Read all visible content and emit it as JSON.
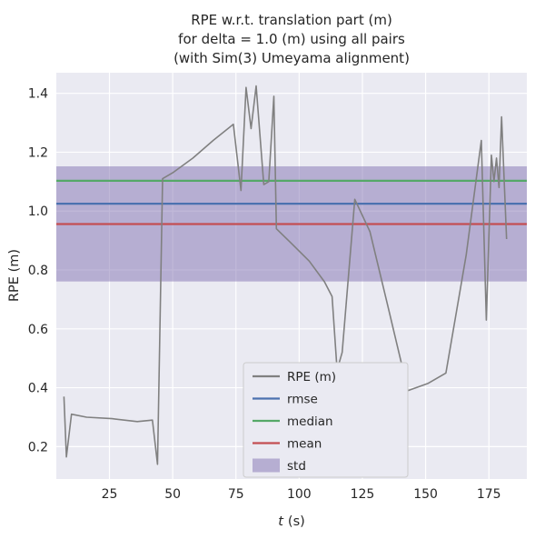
{
  "figure": {
    "background": "#ffffff"
  },
  "chart_data": {
    "type": "line",
    "title_lines": [
      "RPE w.r.t. translation part (m)",
      "for delta = 1.0 (m) using all pairs",
      "(with Sim(3) Umeyama alignment)"
    ],
    "xlabel_var": "t",
    "xlabel_unit": "(s)",
    "ylabel": "RPE (m)",
    "xlim": [
      4,
      190
    ],
    "ylim": [
      0.09,
      1.47
    ],
    "xticks": [
      25,
      50,
      75,
      100,
      125,
      150,
      175
    ],
    "yticks": [
      0.2,
      0.4,
      0.6,
      0.8,
      1.0,
      1.2,
      1.4
    ],
    "grid": true,
    "series": {
      "name": "RPE (m)",
      "color": "#808080",
      "x": [
        7,
        8,
        10,
        16,
        26,
        36,
        42,
        44,
        46,
        50,
        58,
        66,
        74,
        77,
        79,
        81,
        83,
        86,
        88,
        90,
        91,
        97,
        104,
        110,
        113,
        115,
        117,
        122,
        128,
        135,
        143,
        151,
        158,
        166,
        172,
        174,
        176,
        177,
        178,
        179,
        180,
        182
      ],
      "y": [
        0.37,
        0.165,
        0.31,
        0.3,
        0.295,
        0.285,
        0.29,
        0.14,
        1.11,
        1.13,
        1.18,
        1.24,
        1.295,
        1.07,
        1.42,
        1.28,
        1.425,
        1.09,
        1.1,
        1.39,
        0.94,
        0.89,
        0.83,
        0.76,
        0.71,
        0.46,
        0.52,
        1.04,
        0.93,
        0.68,
        0.39,
        0.415,
        0.45,
        0.85,
        1.24,
        0.63,
        1.19,
        1.1,
        1.18,
        1.08,
        1.32,
        0.905
      ]
    },
    "stats": {
      "rmse": {
        "value": 1.025,
        "color": "#4c72b0"
      },
      "median": {
        "value": 1.103,
        "color": "#55a868"
      },
      "mean": {
        "value": 0.956,
        "color": "#c44e52"
      },
      "std": {
        "band_low": 0.761,
        "band_high": 1.152,
        "color": "#8172b2"
      }
    },
    "legend": {
      "position": "lower center-right",
      "entries": [
        {
          "label": "RPE (m)",
          "type": "line",
          "color": "#808080"
        },
        {
          "label": "rmse",
          "type": "line",
          "color": "#4c72b0"
        },
        {
          "label": "median",
          "type": "line",
          "color": "#55a868"
        },
        {
          "label": "mean",
          "type": "line",
          "color": "#c44e52"
        },
        {
          "label": "std",
          "type": "patch",
          "color": "#8172b2"
        }
      ]
    },
    "colors": {
      "axes_bg": "#eaeaf2",
      "grid": "#ffffff",
      "text": "#262626"
    }
  }
}
